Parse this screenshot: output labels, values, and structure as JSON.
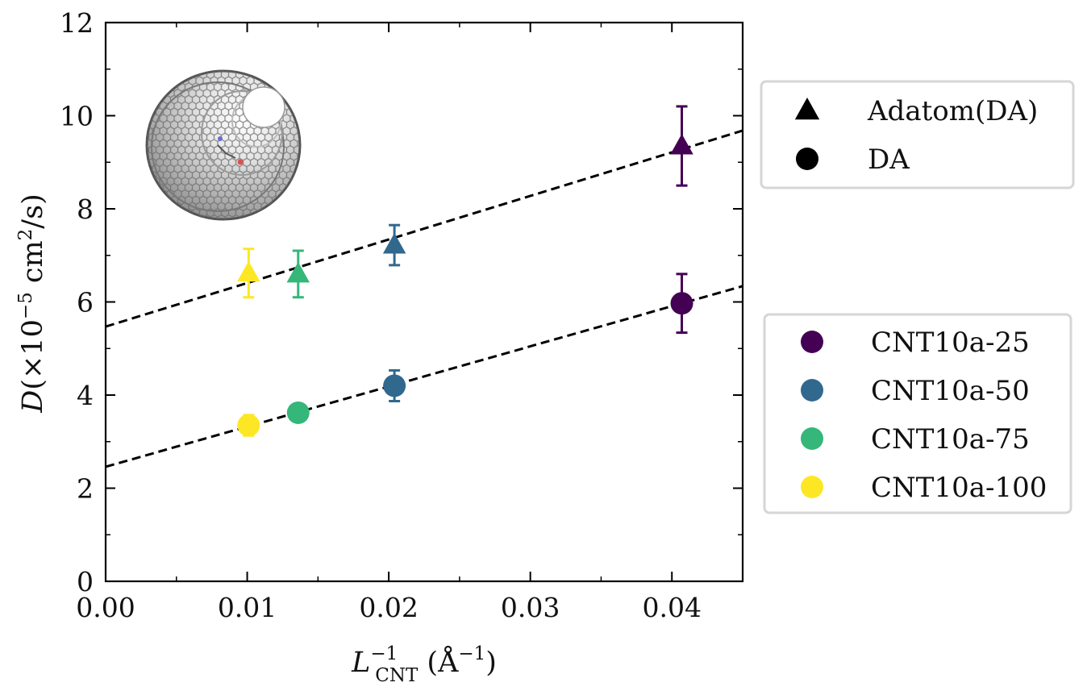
{
  "chart_data": {
    "type": "scatter",
    "title": "",
    "xlabel_main": "L",
    "xlabel_sup": "−1",
    "xlabel_sub": "CNT",
    "xlabel_unit": " (Å",
    "xlabel_unit_sup": "−1",
    "xlabel_close": ")",
    "ylabel_var": "D",
    "ylabel_pre": "(×10",
    "ylabel_sup1": "−5",
    "ylabel_mid": " cm",
    "ylabel_sup2": "2",
    "ylabel_post": "/s)",
    "xlim": [
      0.0,
      0.045
    ],
    "ylim": [
      0,
      12
    ],
    "xticks": [
      "0.00",
      "0.01",
      "0.02",
      "0.03",
      "0.04"
    ],
    "xtick_values": [
      0.0,
      0.01,
      0.02,
      0.03,
      0.04
    ],
    "yticks": [
      "0",
      "2",
      "4",
      "6",
      "8",
      "10",
      "12"
    ],
    "ytick_values": [
      0,
      2,
      4,
      6,
      8,
      10,
      12
    ],
    "series": [
      {
        "name": "CNT10a-25",
        "color": "#440154",
        "x": 0.0407,
        "adatom": {
          "y": 9.35,
          "err": 0.85
        },
        "da": {
          "y": 5.97,
          "err": 0.63
        }
      },
      {
        "name": "CNT10a-50",
        "color": "#31688e",
        "x": 0.0204,
        "adatom": {
          "y": 7.22,
          "err": 0.43
        },
        "da": {
          "y": 4.2,
          "err": 0.33
        }
      },
      {
        "name": "CNT10a-75",
        "color": "#35b779",
        "x": 0.0136,
        "adatom": {
          "y": 6.6,
          "err": 0.5
        },
        "da": {
          "y": 3.62,
          "err": 0.18
        }
      },
      {
        "name": "CNT10a-100",
        "color": "#fde725",
        "x": 0.0101,
        "adatom": {
          "y": 6.62,
          "err": 0.52
        },
        "da": {
          "y": 3.35,
          "err": 0.22
        }
      }
    ],
    "fits": [
      {
        "group": "adatom",
        "x": [
          0.0,
          0.045
        ],
        "y": [
          5.47,
          9.68
        ]
      },
      {
        "group": "da",
        "x": [
          0.0,
          0.045
        ],
        "y": [
          2.46,
          6.34
        ]
      }
    ],
    "marker_legend": [
      {
        "label": "Adatom(DA)",
        "marker": "triangle"
      },
      {
        "label": "DA",
        "marker": "circle"
      }
    ],
    "grid": false,
    "legend_placement": "right, outside plot"
  },
  "inset": {
    "icon": "carbon-nanotube-icon"
  }
}
